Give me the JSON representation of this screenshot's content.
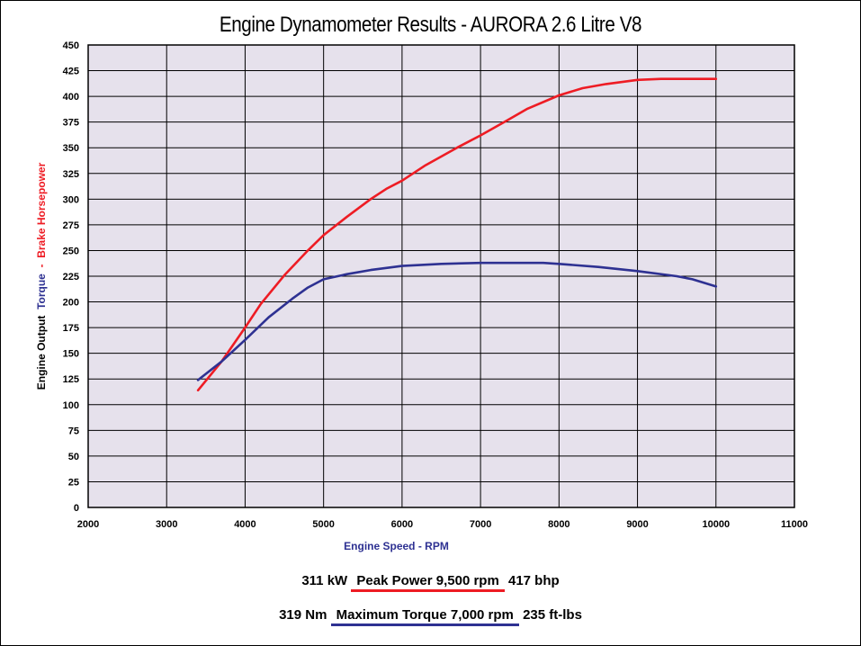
{
  "title": "Engine Dynamometer Results - AURORA 2.6 Litre V8",
  "summary": {
    "power_kw": "311 kW",
    "power_label": "Peak Power 9,500 rpm",
    "power_bhp": "417 bhp",
    "torque_nm": "319 Nm",
    "torque_label": "Maximum Torque 7,000 rpm",
    "torque_ftlbs": "235 ft-lbs"
  },
  "colors": {
    "power": "#ee1c24",
    "torque": "#2e3192",
    "plot_bg": "#e6e1ec",
    "grid": "#000000"
  },
  "chart_data": {
    "type": "line",
    "title": "Engine Dynamometer Results - AURORA 2.6 Litre V8",
    "xlabel": "Engine Speed - RPM",
    "ylabel_parts": [
      "Engine Output",
      "Torque",
      "-",
      "Brake Horsepower"
    ],
    "xlim": [
      2000,
      11000
    ],
    "ylim": [
      0,
      450
    ],
    "x_ticks": [
      2000,
      3000,
      4000,
      5000,
      6000,
      7000,
      8000,
      9000,
      10000,
      11000
    ],
    "y_ticks": [
      0,
      25,
      50,
      75,
      100,
      125,
      150,
      175,
      200,
      225,
      250,
      275,
      300,
      325,
      350,
      375,
      400,
      425,
      450
    ],
    "grid": true,
    "series": [
      {
        "name": "Brake Horsepower",
        "color": "#ee1c24",
        "points": [
          [
            3400,
            114
          ],
          [
            3700,
            142
          ],
          [
            4000,
            175
          ],
          [
            4200,
            198
          ],
          [
            4500,
            226
          ],
          [
            4800,
            250
          ],
          [
            5000,
            265
          ],
          [
            5300,
            283
          ],
          [
            5600,
            300
          ],
          [
            5800,
            310
          ],
          [
            6000,
            318
          ],
          [
            6300,
            333
          ],
          [
            6700,
            350
          ],
          [
            7000,
            362
          ],
          [
            7300,
            375
          ],
          [
            7600,
            388
          ],
          [
            8000,
            401
          ],
          [
            8300,
            408
          ],
          [
            8600,
            412
          ],
          [
            9000,
            416
          ],
          [
            9300,
            417
          ],
          [
            9700,
            417
          ],
          [
            10000,
            417
          ]
        ]
      },
      {
        "name": "Torque",
        "color": "#2e3192",
        "points": [
          [
            3400,
            124
          ],
          [
            3700,
            142
          ],
          [
            4000,
            163
          ],
          [
            4300,
            185
          ],
          [
            4600,
            203
          ],
          [
            4800,
            214
          ],
          [
            5000,
            222
          ],
          [
            5300,
            227
          ],
          [
            5600,
            231
          ],
          [
            6000,
            235
          ],
          [
            6500,
            237
          ],
          [
            7000,
            238
          ],
          [
            7500,
            238
          ],
          [
            7800,
            238
          ],
          [
            8000,
            237
          ],
          [
            8500,
            234
          ],
          [
            9000,
            230
          ],
          [
            9500,
            225
          ],
          [
            9700,
            222
          ],
          [
            10000,
            215
          ]
        ]
      }
    ]
  }
}
